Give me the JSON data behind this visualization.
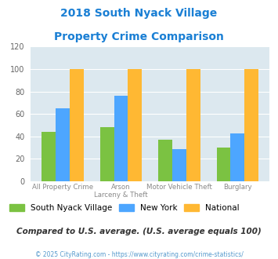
{
  "title_line1": "2018 South Nyack Village",
  "title_line2": "Property Crime Comparison",
  "cat_labels_line1": [
    "All Property Crime",
    "Arson",
    "Motor Vehicle Theft",
    "Burglary"
  ],
  "cat_labels_line2": [
    "",
    "Larceny & Theft",
    "",
    ""
  ],
  "series": {
    "South Nyack Village": [
      44,
      48,
      37,
      30
    ],
    "New York": [
      65,
      76,
      29,
      43
    ],
    "National": [
      100,
      100,
      100,
      100
    ]
  },
  "colors": {
    "South Nyack Village": "#7bc242",
    "New York": "#4da6ff",
    "National": "#ffb833"
  },
  "ylim": [
    0,
    120
  ],
  "yticks": [
    0,
    20,
    40,
    60,
    80,
    100,
    120
  ],
  "title_color": "#1a7fd4",
  "background_color": "#dce8ef",
  "footer_text": "Compared to U.S. average. (U.S. average equals 100)",
  "copyright_text": "© 2025 CityRating.com - https://www.cityrating.com/crime-statistics/",
  "copyright_color": "#5599cc",
  "footer_color": "#333333",
  "legend_labels": [
    "South Nyack Village",
    "New York",
    "National"
  ]
}
